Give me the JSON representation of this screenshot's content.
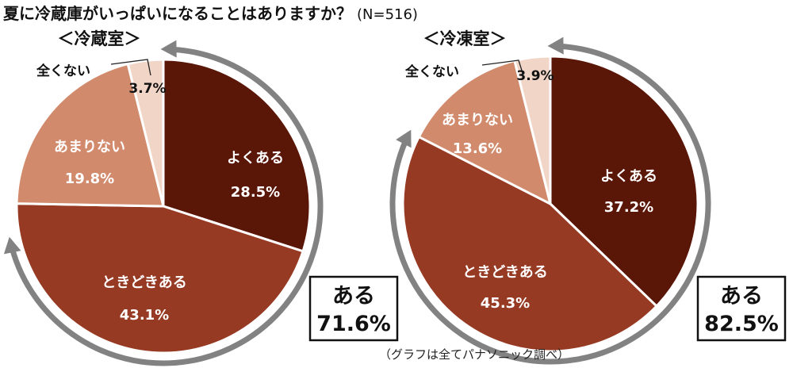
{
  "title": {
    "main": "夏に冷蔵庫がいっぱいになることはありますか？",
    "n": "(N=516)"
  },
  "source": "（グラフは全てパナソニック調べ）",
  "colors": {
    "よくある": "#5a1607",
    "ときどきある": "#973a23",
    "あまりない": "#d28a6c",
    "全くない": "#f1d6c8",
    "arrow": "#828282",
    "separator": "#ffffff"
  },
  "chart_data": [
    {
      "type": "pie",
      "title": "＜冷蔵室＞",
      "slices": [
        {
          "label": "よくある",
          "value": 28.5,
          "display": "28.5%"
        },
        {
          "label": "ときどきある",
          "value": 43.1,
          "display": "43.1%"
        },
        {
          "label": "あまりない",
          "value": 19.8,
          "display": "19.8%"
        },
        {
          "label": "全くない",
          "value": 3.7,
          "display": "3.7%"
        }
      ],
      "total": {
        "label": "ある",
        "value": 71.6,
        "display": "71.6%"
      }
    },
    {
      "type": "pie",
      "title": "＜冷凍室＞",
      "slices": [
        {
          "label": "よくある",
          "value": 37.2,
          "display": "37.2%"
        },
        {
          "label": "ときどきある",
          "value": 45.3,
          "display": "45.3%"
        },
        {
          "label": "あまりない",
          "value": 13.6,
          "display": "13.6%"
        },
        {
          "label": "全くない",
          "value": 3.9,
          "display": "3.9%"
        }
      ],
      "total": {
        "label": "ある",
        "value": 82.5,
        "display": "82.5%"
      }
    }
  ]
}
